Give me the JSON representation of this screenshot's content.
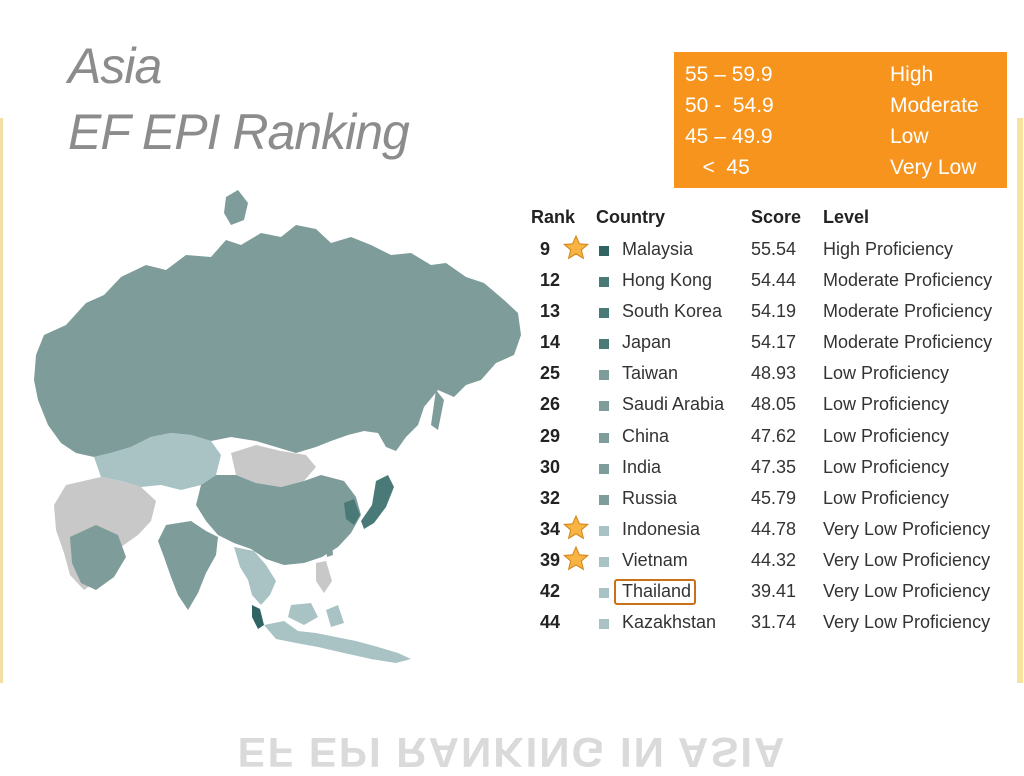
{
  "title": {
    "line1": "Asia",
    "line2": "EF EPI Ranking"
  },
  "legend": [
    {
      "range": "55 – 59.9",
      "label": "High"
    },
    {
      "range": "50 -  54.9",
      "label": "Moderate"
    },
    {
      "range": "45 – 49.9",
      "label": "Low"
    },
    {
      "range": "   <  45",
      "label": "Very Low"
    }
  ],
  "table": {
    "headers": {
      "rank": "Rank",
      "country": "Country",
      "score": "Score",
      "level": "Level"
    },
    "rows": [
      {
        "rank": "9",
        "country": "Malaysia",
        "score": "55.54",
        "level": "High Proficiency",
        "tier": "high",
        "starred": true,
        "highlighted": false
      },
      {
        "rank": "12",
        "country": "Hong Kong",
        "score": "54.44",
        "level": "Moderate Proficiency",
        "tier": "moderate",
        "starred": false,
        "highlighted": false
      },
      {
        "rank": "13",
        "country": "South Korea",
        "score": "54.19",
        "level": "Moderate Proficiency",
        "tier": "moderate",
        "starred": false,
        "highlighted": false
      },
      {
        "rank": "14",
        "country": "Japan",
        "score": "54.17",
        "level": "Moderate Proficiency",
        "tier": "moderate",
        "starred": false,
        "highlighted": false
      },
      {
        "rank": "25",
        "country": "Taiwan",
        "score": "48.93",
        "level": "Low Proficiency",
        "tier": "low",
        "starred": false,
        "highlighted": false
      },
      {
        "rank": "26",
        "country": "Saudi Arabia",
        "score": "48.05",
        "level": "Low Proficiency",
        "tier": "low",
        "starred": false,
        "highlighted": false
      },
      {
        "rank": "29",
        "country": "China",
        "score": "47.62",
        "level": "Low Proficiency",
        "tier": "low",
        "starred": false,
        "highlighted": false
      },
      {
        "rank": "30",
        "country": "India",
        "score": "47.35",
        "level": "Low Proficiency",
        "tier": "low",
        "starred": false,
        "highlighted": false
      },
      {
        "rank": "32",
        "country": "Russia",
        "score": "45.79",
        "level": "Low Proficiency",
        "tier": "low",
        "starred": false,
        "highlighted": false
      },
      {
        "rank": "34",
        "country": "Indonesia",
        "score": "44.78",
        "level": "Very Low Proficiency",
        "tier": "verylow",
        "starred": true,
        "highlighted": false
      },
      {
        "rank": "39",
        "country": "Vietnam",
        "score": "44.32",
        "level": "Very Low Proficiency",
        "tier": "verylow",
        "starred": true,
        "highlighted": false
      },
      {
        "rank": "42",
        "country": "Thailand",
        "score": "39.41",
        "level": "Very Low Proficiency",
        "tier": "verylow",
        "starred": false,
        "highlighted": true
      },
      {
        "rank": "44",
        "country": "Kazakhstan",
        "score": "31.74",
        "level": "Very Low Proficiency",
        "tier": "verylow",
        "starred": false,
        "highlighted": false
      }
    ]
  },
  "colors": {
    "high": "#2f6462",
    "moderate": "#4a7a78",
    "low": "#7d9c9a",
    "verylow": "#a9c3c5",
    "nodata": "#c8c8c8",
    "accent": "#f7941d",
    "title": "#8c8c8c"
  },
  "reflection_text": "EF EPI RANKING IN ASIA"
}
